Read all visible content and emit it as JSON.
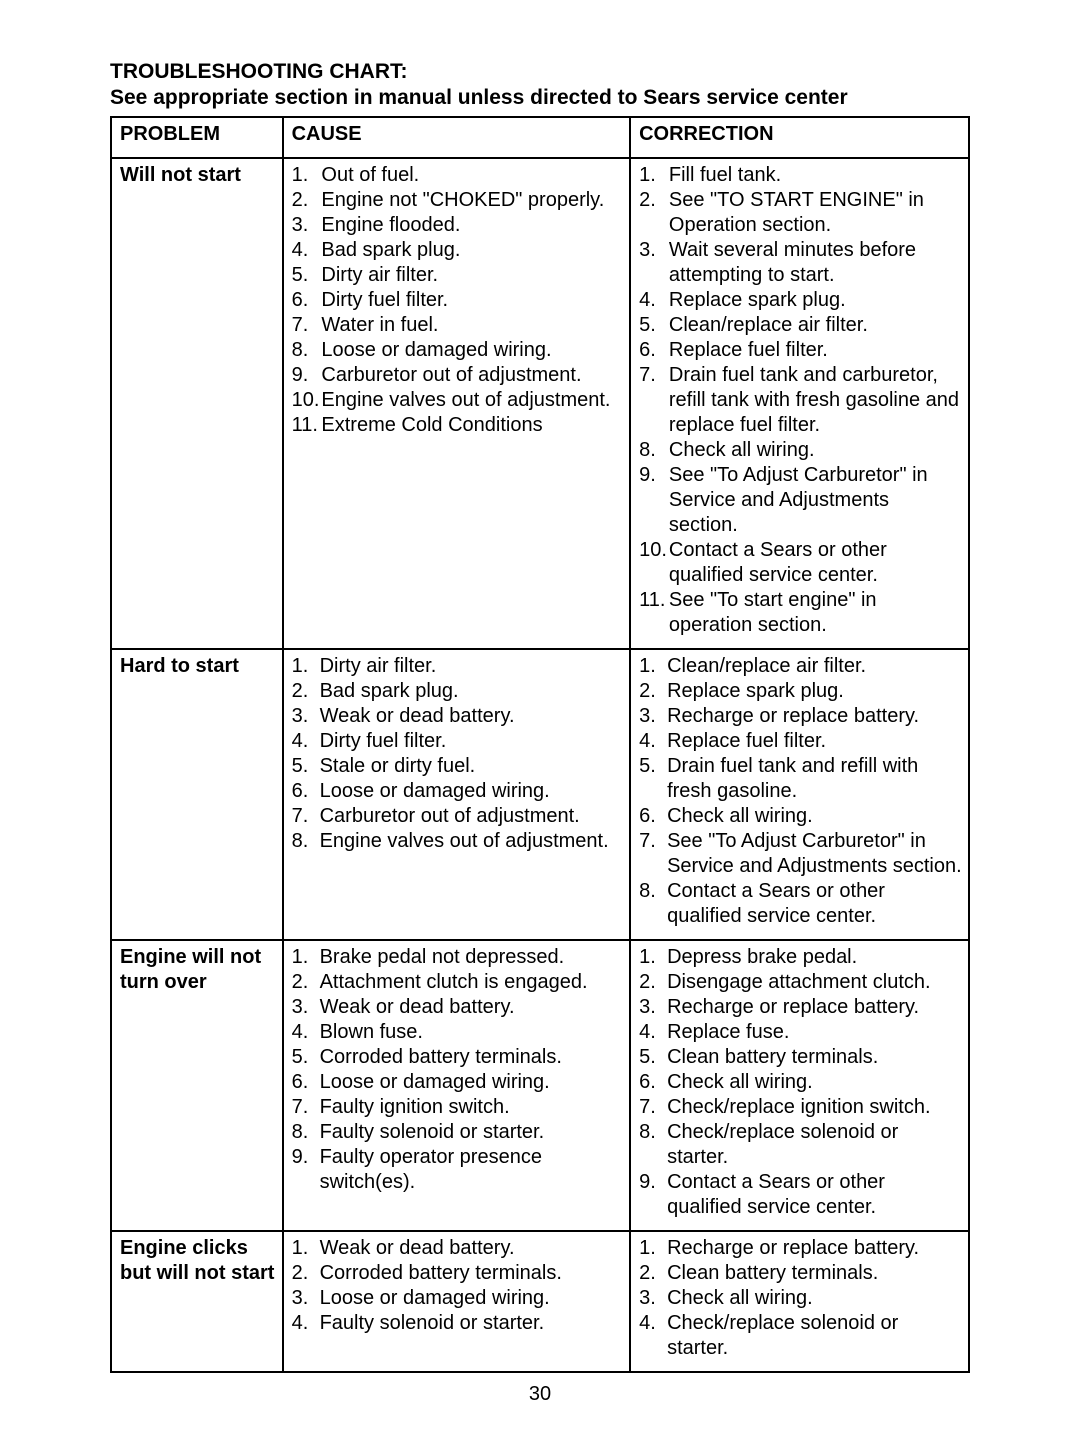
{
  "page": {
    "title": "TROUBLESHOOTING CHART:",
    "subtitle": "See appropriate section in manual unless directed to Sears service center",
    "pageNumber": "30"
  },
  "headers": {
    "problem": "PROBLEM",
    "cause": "CAUSE",
    "correction": "CORRECTION"
  },
  "rows": [
    {
      "problem": "Will not start",
      "causes": [
        "Out of fuel.",
        "Engine not \"CHOKED\" properly.",
        "Engine flooded.",
        "Bad spark plug.",
        "Dirty air filter.",
        "Dirty fuel filter.",
        "Water in fuel.",
        "Loose or damaged wiring.",
        "Carburetor out of adjustment.",
        "Engine valves out of adjustment.",
        "Extreme Cold Conditions"
      ],
      "corrections": [
        "Fill fuel tank.",
        "See \"TO START ENGINE\" in Operation section.",
        "Wait several minutes before attempting to start.",
        "Replace spark plug.",
        "Clean/replace air filter.",
        "Replace fuel filter.",
        "Drain fuel tank and carburetor, refill tank with fresh gasoline and replace fuel filter.",
        "Check all wiring.",
        "See \"To Adjust Carburetor\" in Service and Adjustments section.",
        "Contact a Sears or other qualified service center.",
        "See \"To start engine\" in operation section."
      ]
    },
    {
      "problem": "Hard to start",
      "causes": [
        "Dirty air filter.",
        "Bad spark plug.",
        "Weak or dead battery.",
        "Dirty fuel filter.",
        "Stale or dirty fuel.",
        "Loose or damaged wiring.",
        "Carburetor out of adjustment.",
        "Engine valves out of adjustment."
      ],
      "corrections": [
        "Clean/replace air filter.",
        "Replace spark plug.",
        "Recharge or replace battery.",
        "Replace fuel filter.",
        "Drain fuel tank and refill with fresh gasoline.",
        "Check all wiring.",
        "See \"To Adjust Carburetor\" in Service and Adjustments section.",
        "Contact a Sears or other qualified service center."
      ]
    },
    {
      "problem": "Engine will not turn over",
      "causes": [
        "Brake pedal not depressed.",
        "Attachment clutch is engaged.",
        "Weak or dead battery.",
        "Blown fuse.",
        "Corroded battery terminals.",
        "Loose or damaged wiring.",
        "Faulty ignition switch.",
        "Faulty solenoid or starter.",
        "Faulty operator presence switch(es)."
      ],
      "corrections": [
        "Depress brake pedal.",
        "Disengage attachment clutch.",
        "Recharge or replace battery.",
        "Replace fuse.",
        "Clean battery terminals.",
        "Check all wiring.",
        "Check/replace ignition switch.",
        "Check/replace solenoid or starter.",
        "Contact a Sears or other qualified service center."
      ]
    },
    {
      "problem": "Engine clicks but will not start",
      "causes": [
        "Weak or dead battery.",
        "Corroded battery terminals.",
        "Loose or damaged wiring.",
        "Faulty solenoid or starter."
      ],
      "corrections": [
        "Recharge or replace battery.",
        "Clean battery terminals.",
        "Check all wiring.",
        "Check/replace solenoid or starter."
      ]
    }
  ]
}
